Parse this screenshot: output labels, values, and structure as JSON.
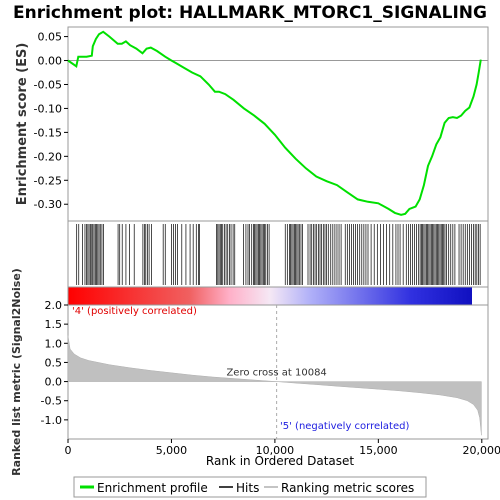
{
  "chart_data": {
    "type": "line",
    "title": "Enrichment plot: HALLMARK_MTORC1_SIGNALING",
    "es_panel": {
      "ylabel": "Enrichment score (ES)",
      "ylim": [
        -0.335,
        0.07
      ],
      "yticks": [
        "0.05",
        "0.00",
        "-0.05",
        "-0.10",
        "-0.15",
        "-0.20",
        "-0.25",
        "-0.30"
      ],
      "ytick_values": [
        0.05,
        0.0,
        -0.05,
        -0.1,
        -0.15,
        -0.2,
        -0.25,
        -0.3
      ],
      "line_color": "#00e000",
      "series_name": "Enrichment profile",
      "x": [
        0,
        400,
        500,
        900,
        1150,
        1200,
        1350,
        1500,
        1700,
        2000,
        2400,
        2600,
        2800,
        3000,
        3300,
        3600,
        3800,
        4000,
        4300,
        4700,
        5000,
        5200,
        5600,
        6000,
        6400,
        6800,
        7100,
        7300,
        7600,
        8000,
        8500,
        9000,
        9500,
        10000,
        10500,
        11000,
        11500,
        12000,
        12500,
        13000,
        13500,
        14000,
        14200,
        14500,
        15000,
        15500,
        15800,
        16100,
        16300,
        16500,
        16800,
        17000,
        17200,
        17400,
        17600,
        17800,
        18000,
        18200,
        18400,
        18600,
        18800,
        19000,
        19200,
        19400,
        19600,
        19750,
        19850,
        19950
      ],
      "y": [
        0.0,
        -0.012,
        0.008,
        0.008,
        0.01,
        0.03,
        0.045,
        0.055,
        0.06,
        0.05,
        0.035,
        0.035,
        0.04,
        0.032,
        0.025,
        0.015,
        0.025,
        0.027,
        0.02,
        0.008,
        0.0,
        -0.005,
        -0.015,
        -0.025,
        -0.033,
        -0.05,
        -0.065,
        -0.065,
        -0.07,
        -0.082,
        -0.1,
        -0.115,
        -0.132,
        -0.155,
        -0.182,
        -0.205,
        -0.225,
        -0.242,
        -0.252,
        -0.26,
        -0.275,
        -0.29,
        -0.292,
        -0.295,
        -0.298,
        -0.31,
        -0.318,
        -0.322,
        -0.32,
        -0.31,
        -0.305,
        -0.29,
        -0.26,
        -0.22,
        -0.2,
        -0.175,
        -0.16,
        -0.13,
        -0.12,
        -0.118,
        -0.12,
        -0.115,
        -0.105,
        -0.098,
        -0.075,
        -0.05,
        -0.025,
        0.002
      ]
    },
    "hits": [
      420,
      520,
      700,
      820,
      900,
      960,
      1020,
      1080,
      1150,
      1200,
      1260,
      1320,
      1380,
      1440,
      1500,
      1560,
      1640,
      1720,
      2420,
      2500,
      2620,
      2800,
      2980,
      3200,
      3620,
      3700,
      3760,
      3840,
      3920,
      4040,
      4600,
      4700,
      5000,
      5100,
      5200,
      5300,
      5500,
      5700,
      5900,
      6050,
      6200,
      6300,
      6350,
      7180,
      7240,
      7300,
      7360,
      7420,
      7480,
      7560,
      7640,
      7720,
      7800,
      7880,
      7980,
      8060,
      8480,
      8600,
      8700,
      8780,
      8880,
      8960,
      9020,
      9080,
      9140,
      9200,
      9260,
      9320,
      9380,
      9440,
      9500,
      9560,
      9640,
      9720,
      10500,
      10600,
      10700,
      10760,
      10820,
      10880,
      10940,
      11000,
      11060,
      11120,
      11180,
      11260,
      11340,
      11600,
      11700,
      11780,
      11860,
      11940,
      12020,
      12100,
      12180,
      12260,
      12340,
      12420,
      12500,
      12580,
      12700,
      12800,
      12900,
      13000,
      13100,
      13200,
      13400,
      13500,
      13600,
      13700,
      13800,
      13900,
      14000,
      14100,
      14200,
      14300,
      14400,
      14500,
      14650,
      14800,
      14950,
      15100,
      15250,
      15400,
      15550,
      15700,
      15850,
      15950,
      16050,
      16200,
      16350,
      16450,
      16550,
      16650,
      16750,
      16850,
      16950,
      17020,
      17080,
      17140,
      17200,
      17260,
      17320,
      17380,
      17440,
      17500,
      17560,
      17620,
      17680,
      17740,
      17800,
      17860,
      17920,
      17980,
      18040,
      18100,
      18160,
      18220,
      18300,
      18400,
      18500,
      18600,
      18700,
      18900,
      19000,
      19100,
      19200,
      19300,
      19400,
      19500,
      19600,
      19680,
      19760,
      19840,
      19920
    ],
    "metric_panel": {
      "ylabel": "Ranked list metric (Signal2Noise)",
      "ylim": [
        -1.5,
        2.0
      ],
      "yticks": [
        "2.0",
        "1.5",
        "1.0",
        "0.5",
        "0.0",
        "-0.5",
        "-1.0"
      ],
      "ytick_values": [
        2.0,
        1.5,
        1.0,
        0.5,
        0.0,
        -0.5,
        -1.0
      ],
      "rank_points": [
        0,
        100,
        300,
        600,
        1000,
        2000,
        3000,
        4000,
        5000,
        6000,
        7000,
        8000,
        9000,
        10084,
        11000,
        12000,
        13000,
        14000,
        15000,
        16000,
        17000,
        18000,
        18800,
        19300,
        19600,
        19800,
        19900,
        19980
      ],
      "metric_values": [
        1.2,
        0.85,
        0.72,
        0.62,
        0.55,
        0.44,
        0.36,
        0.29,
        0.23,
        0.17,
        0.12,
        0.08,
        0.04,
        0.0,
        -0.04,
        -0.08,
        -0.12,
        -0.16,
        -0.2,
        -0.24,
        -0.29,
        -0.35,
        -0.42,
        -0.5,
        -0.6,
        -0.75,
        -0.95,
        -1.4
      ],
      "zero_cross_label": "Zero cross at 10084",
      "zero_cross": 10084,
      "pos_label": "'4' (positively correlated)",
      "neg_label": "'5' (negatively correlated)",
      "pos_color": "#e00000",
      "neg_color": "#2020e0"
    },
    "xaxis": {
      "label": "Rank in Ordered Dataset",
      "xlim": [
        0,
        20300
      ],
      "ticks": [
        "0",
        "5,000",
        "10,000",
        "15,000",
        "20,000"
      ],
      "tick_values": [
        0,
        5000,
        10000,
        15000,
        20000
      ],
      "n_genes": 19980
    },
    "legend": {
      "placement": "bottom",
      "items": [
        {
          "label": "Enrichment profile",
          "color": "#00e000"
        },
        {
          "label": "Hits",
          "color": "#000000"
        },
        {
          "label": "Ranking metric scores",
          "color": "#b0b0b0"
        }
      ]
    }
  }
}
